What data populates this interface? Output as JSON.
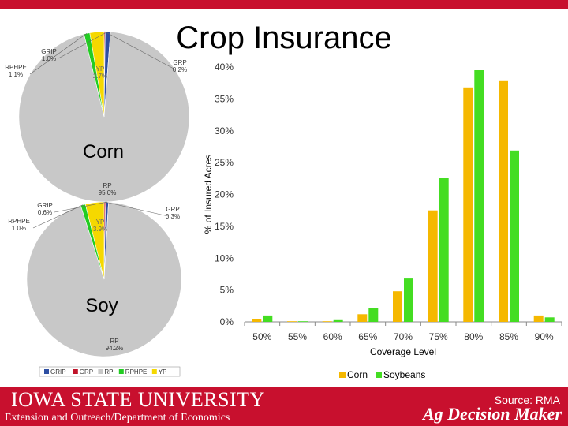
{
  "title": "Crop Insurance",
  "footer": {
    "university": "Iowa State University",
    "department": "Extension and Outreach/Department of Economics",
    "source": "Source: RMA",
    "brand": "Ag Decision Maker"
  },
  "colors": {
    "corn": "#f5b800",
    "soybeans": "#44dd22",
    "brand_red": "#c8102e",
    "GRIP": "#2e4fa3",
    "GRP": "#c0142a",
    "RP": "#c8c8c8",
    "RPHPE": "#22cc22",
    "YP": "#f5d800"
  },
  "chart_data": [
    {
      "type": "pie",
      "title": "Corn",
      "slices": [
        {
          "label": "GRIP",
          "value_label": "1.0%",
          "value": 1.0
        },
        {
          "label": "GRP",
          "value_label": "0.2%",
          "value": 0.2
        },
        {
          "label": "RP",
          "value_label": "95.0%",
          "value": 95.0
        },
        {
          "label": "RPHPE",
          "value_label": "1.1%",
          "value": 1.1
        },
        {
          "label": "YP",
          "value_label": "2.7%",
          "value": 2.7
        }
      ]
    },
    {
      "type": "pie",
      "title": "Soy",
      "slices": [
        {
          "label": "GRIP",
          "value_label": "0.6%",
          "value": 0.6
        },
        {
          "label": "GRP",
          "value_label": "0.3%",
          "value": 0.3
        },
        {
          "label": "RP",
          "value_label": "94.2%",
          "value": 94.2
        },
        {
          "label": "RPHPE",
          "value_label": "1.0%",
          "value": 1.0
        },
        {
          "label": "YP",
          "value_label": "3.9%",
          "value": 3.9
        }
      ],
      "legend": [
        "GRIP",
        "GRP",
        "RP",
        "RPHPE",
        "YP"
      ],
      "legend_position": "bottom"
    },
    {
      "type": "bar",
      "categories": [
        "50%",
        "55%",
        "60%",
        "65%",
        "70%",
        "75%",
        "80%",
        "85%",
        "90%"
      ],
      "series": [
        {
          "name": "Corn",
          "values": [
            0.5,
            0.1,
            0.1,
            1.2,
            4.8,
            17.5,
            36.8,
            37.8,
            1.0
          ]
        },
        {
          "name": "Soybeans",
          "values": [
            1.0,
            0.1,
            0.4,
            2.1,
            6.8,
            22.6,
            39.5,
            26.9,
            0.7
          ]
        }
      ],
      "xlabel": "Coverage Level",
      "ylabel": "% of Insured Acres",
      "ylim": [
        0,
        40
      ],
      "yticks": [
        "0%",
        "5%",
        "10%",
        "15%",
        "20%",
        "25%",
        "30%",
        "35%",
        "40%"
      ],
      "legend_position": "bottom",
      "grid": false
    }
  ]
}
